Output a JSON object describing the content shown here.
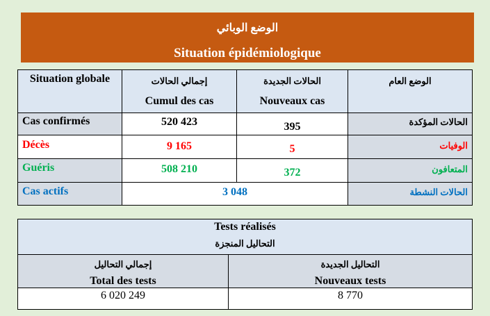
{
  "banner": {
    "title_ar": "الوضع الوبائي",
    "title_fr": "Situation épidémiologique"
  },
  "colors": {
    "banner": "#c55a11",
    "deaths": "#ff0000",
    "recovered": "#00b050",
    "active": "#0070c0",
    "header": "#dce6f2",
    "row_label": "#d6dce4"
  },
  "situation": {
    "header": {
      "label_fr": "Situation globale",
      "cumul_ar": "إجمالي الحالات",
      "cumul_fr": "Cumul des cas",
      "new_ar": "الحالات الجديدة",
      "new_fr": "Nouveaux cas",
      "label_ar": "الوضع العام"
    },
    "rows": [
      {
        "fr": "Cas confirmés",
        "cumul": "520 423",
        "new": "395",
        "ar": "الحالات المؤكدة"
      },
      {
        "fr": "Décès",
        "cumul": "9 165",
        "new": "5",
        "ar": "الوفيات"
      },
      {
        "fr": "Guéris",
        "cumul": "508 210",
        "new": "372",
        "ar": "المتعافون"
      },
      {
        "fr": "Cas actifs",
        "value": "3 048",
        "ar": "الحالات النشطة"
      }
    ]
  },
  "tests": {
    "title_fr": "Tests réalisés",
    "title_ar": "التحاليل المنجزة",
    "total_ar": "إجمالي التحاليل",
    "total_fr": "Total des tests",
    "total_value": "6 020 249",
    "new_ar": "التحاليل الجديدة",
    "new_fr": "Nouveaux tests",
    "new_value": "8 770"
  }
}
